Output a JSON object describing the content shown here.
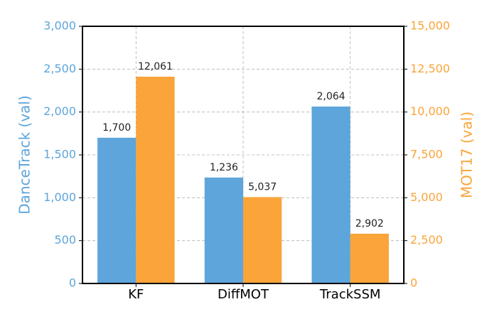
{
  "chart_data": {
    "type": "bar",
    "categories": [
      "KF",
      "DiffMOT",
      "TrackSSM"
    ],
    "series": [
      {
        "name": "DanceTrack (val)",
        "color": "#5da5da",
        "axis": "y",
        "values": [
          1700,
          1236,
          2064
        ],
        "value_labels": [
          "1,700",
          "1,236",
          "2,064"
        ]
      },
      {
        "name": "MOT17 (val)",
        "color": "#faa43a",
        "axis": "y2",
        "values": [
          12061,
          5037,
          2902
        ],
        "value_labels": [
          "12,061",
          "5,037",
          "2,902"
        ]
      }
    ],
    "ylim": [
      0,
      3000
    ],
    "yticks": [
      0,
      500,
      {
        "value": 1000,
        "label": "1,000"
      },
      {
        "value": 1500,
        "label": "1,500"
      },
      {
        "value": 2000,
        "label": "2,000"
      },
      {
        "value": 2500,
        "label": "2,500"
      },
      {
        "value": 3000,
        "label": "3,000"
      }
    ],
    "y2lim": [
      0,
      15000
    ],
    "y2ticks": [
      0,
      {
        "value": 2500,
        "label": "2,500"
      },
      {
        "value": 5000,
        "label": "5,000"
      },
      {
        "value": 7500,
        "label": "7,500"
      },
      {
        "value": 10000,
        "label": "10,000"
      },
      {
        "value": 12500,
        "label": "12,500"
      },
      {
        "value": 15000,
        "label": "15,000"
      }
    ],
    "grid": true
  }
}
